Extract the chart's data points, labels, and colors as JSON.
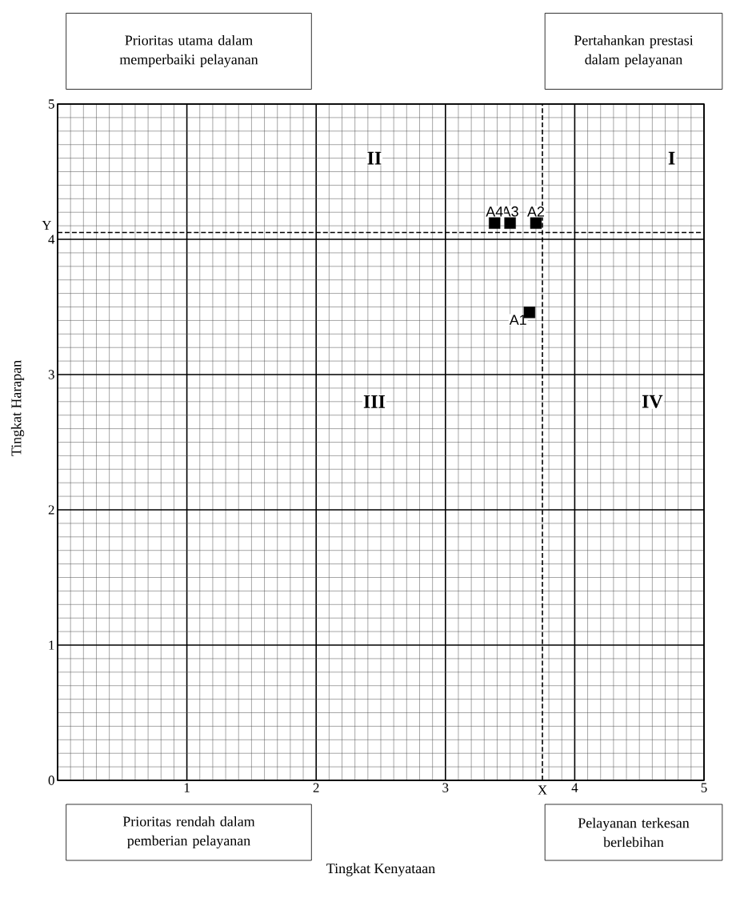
{
  "chart_data": {
    "type": "scatter",
    "xlabel": "Tingkat Kenyataan",
    "ylabel": "Tingkat Harapan",
    "x": [
      3.65,
      3.7,
      3.5,
      3.38
    ],
    "series": [
      {
        "color": "#000000",
        "values": [
          3.46,
          4.12,
          4.12,
          4.12
        ]
      }
    ],
    "marker": "square",
    "xlim": [
      0,
      5
    ],
    "ylim": [
      0,
      5
    ],
    "xticks": [
      {
        "value": 0,
        "label": null
      },
      1,
      2,
      3,
      4,
      5
    ],
    "yticks": [
      0,
      1,
      2,
      3,
      4,
      5
    ],
    "grid": true,
    "ref_lines": [
      {
        "axis": "x",
        "value": 3.75,
        "label": "X",
        "line_style": "dashed"
      },
      {
        "axis": "y",
        "value": 4.05,
        "label": "Y",
        "line_style": "dashed"
      }
    ],
    "annotations": [
      "Prioritas utama dalam memperbaiki pelayanan",
      "Pertahankan prestasi dalam pelayanan",
      "Prioritas rendah dalam pemberian pelayanan",
      "Pelayanan terkesan berlebihan",
      "II",
      "I",
      "III",
      "IV",
      {
        "text": "A1",
        "x": 3.65,
        "y": 3.46
      },
      {
        "text": "A2",
        "x": 3.7,
        "y": 4.12
      },
      {
        "text": "A3",
        "x": 3.5,
        "y": 4.12
      },
      {
        "text": "A4",
        "x": 3.38,
        "y": 4.12
      }
    ]
  }
}
